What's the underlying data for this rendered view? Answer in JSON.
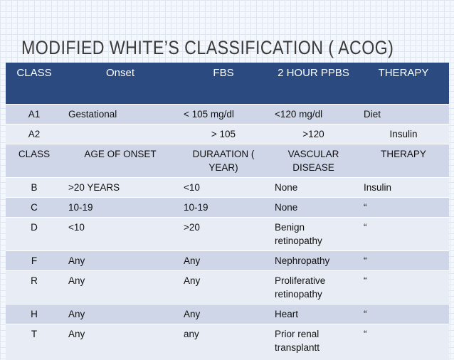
{
  "title": "MODIFIED WHITE’S CLASSIFICATION ( ACOG)",
  "table": {
    "header": [
      "CLASS",
      "Onset",
      "FBS",
      "2 HOUR PPBS",
      "THERAPY"
    ],
    "rows": [
      [
        "A1",
        "Gestational",
        "< 105 mg/dl",
        "<120 mg/dl",
        "Diet"
      ],
      [
        "A2",
        null,
        "> 105",
        ">120",
        "Insulin"
      ],
      [
        "CLASS",
        "AGE OF ONSET",
        "DURAATION ( YEAR)",
        "VASCULAR DISEASE",
        "THERAPY"
      ],
      [
        "B",
        ">20 YEARS",
        "<10",
        "None",
        "Insulin"
      ],
      [
        "C",
        "10-19",
        "10-19",
        "None",
        "“"
      ],
      [
        "D",
        "<10",
        ">20",
        "Benign retinopathy",
        "“"
      ],
      [
        "F",
        "Any",
        "Any",
        "Nephropathy",
        "“"
      ],
      [
        "R",
        "Any",
        "Any",
        "Proliferative retinopathy",
        "“"
      ],
      [
        "H",
        "Any",
        "Any",
        "Heart",
        "“"
      ],
      [
        "T",
        "Any",
        "any",
        "Prior renal transplantt",
        "“"
      ]
    ]
  }
}
